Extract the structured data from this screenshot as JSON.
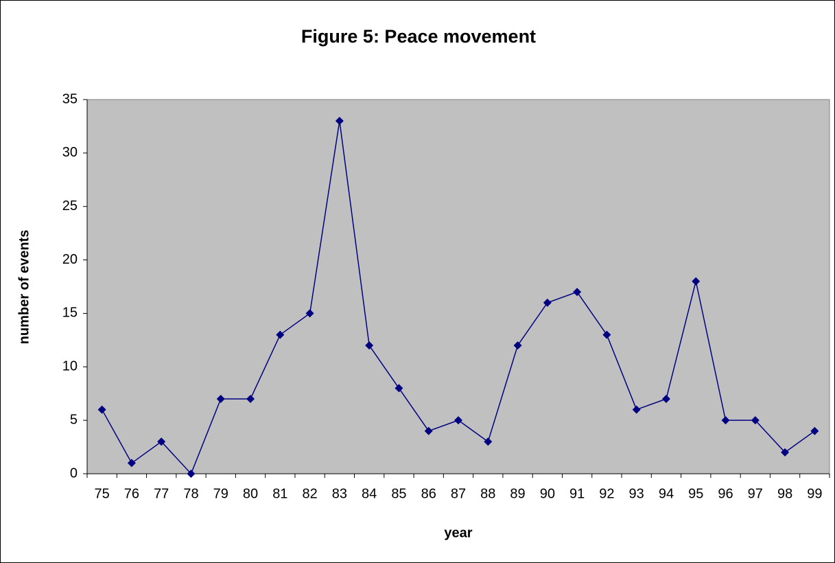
{
  "chart_data": {
    "type": "line",
    "title": "Figure 5: Peace movement",
    "xlabel": "year",
    "ylabel": "number of events",
    "categories": [
      "75",
      "76",
      "77",
      "78",
      "79",
      "80",
      "81",
      "82",
      "83",
      "84",
      "85",
      "86",
      "87",
      "88",
      "89",
      "90",
      "91",
      "92",
      "93",
      "94",
      "95",
      "96",
      "97",
      "98",
      "99"
    ],
    "values": [
      6,
      1,
      3,
      0,
      7,
      7,
      13,
      15,
      33,
      12,
      8,
      4,
      5,
      3,
      12,
      16,
      17,
      13,
      6,
      7,
      18,
      5,
      5,
      2,
      4
    ],
    "color": "#000080",
    "background": "#c0c0c0",
    "ylim": [
      0,
      35
    ],
    "yticks": [
      0,
      5,
      10,
      15,
      20,
      25,
      30,
      35
    ],
    "grid": false
  }
}
